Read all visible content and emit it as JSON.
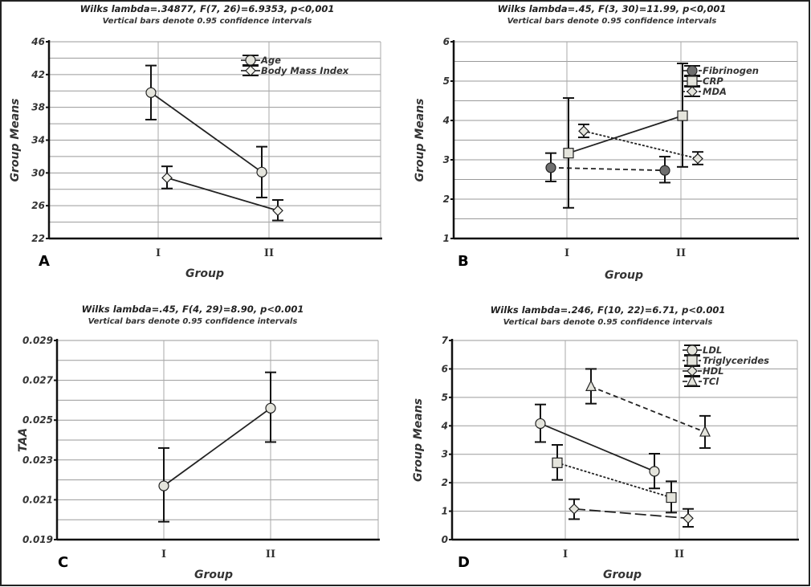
{
  "chart_data": [
    {
      "panel": "A",
      "type": "line",
      "title": "Wilks lambda=.34877, F(7, 26)=6.9353, p<0,001",
      "subtitle": "Vertical bars denote 0.95 confidence intervals",
      "xlabel": "Group",
      "ylabel": "Group Means",
      "categories": [
        "I",
        "II"
      ],
      "ylim": [
        22,
        46
      ],
      "yticks": [
        "22",
        "26",
        "30",
        "34",
        "38",
        "42",
        "46"
      ],
      "ytick_step": 4,
      "grid_step": 2,
      "grid": true,
      "legend": "top-right",
      "series": [
        {
          "name": "Age",
          "marker": "circle",
          "line": "solid",
          "fill": "#e4e4dc",
          "values": [
            39.8,
            30.1
          ],
          "ci_low": [
            36.5,
            27.0
          ],
          "ci_high": [
            43.1,
            33.2
          ]
        },
        {
          "name": "Body Mass Index",
          "marker": "diamond",
          "line": "solid",
          "fill": "#f2f2ec",
          "values": [
            29.4,
            25.4
          ],
          "ci_low": [
            28.1,
            24.2
          ],
          "ci_high": [
            30.8,
            26.7
          ]
        }
      ]
    },
    {
      "panel": "B",
      "type": "line",
      "title": "Wilks lambda=.45, F(3, 30)=11.99, p<0,001",
      "subtitle": "Vertical bars denote 0.95 confidence intervals",
      "xlabel": "Group",
      "ylabel": "Group Means",
      "categories": [
        "I",
        "II"
      ],
      "ylim": [
        1,
        6
      ],
      "yticks": [
        "1",
        "2",
        "3",
        "4",
        "5",
        "6"
      ],
      "ytick_step": 1,
      "grid_step": 0.5,
      "grid": true,
      "legend": "top-right",
      "series": [
        {
          "name": "Fibrinogen",
          "marker": "circle",
          "line": "dashed",
          "fill": "#6e6e6e",
          "values": [
            2.8,
            2.73
          ],
          "ci_low": [
            2.45,
            2.42
          ],
          "ci_high": [
            3.17,
            3.08
          ]
        },
        {
          "name": "CRP",
          "marker": "square",
          "line": "solid",
          "fill": "#e4e4dc",
          "values": [
            3.17,
            4.12
          ],
          "ci_low": [
            1.78,
            2.82
          ],
          "ci_high": [
            4.57,
            5.45
          ]
        },
        {
          "name": "MDA",
          "marker": "diamond",
          "line": "dotted",
          "fill": "#e4e4dc",
          "values": [
            3.73,
            3.03
          ],
          "ci_low": [
            3.57,
            2.88
          ],
          "ci_high": [
            3.9,
            3.2
          ]
        }
      ]
    },
    {
      "panel": "C",
      "type": "line",
      "title": "Wilks lambda=.45, F(4, 29)=8.90, p<0.001",
      "subtitle": "Vertical bars denote 0.95 confidence intervals",
      "xlabel": "Group",
      "ylabel": "TAA",
      "categories": [
        "I",
        "II"
      ],
      "ylim": [
        0.019,
        0.029
      ],
      "yticks": [
        "0.019",
        "0.021",
        "0.023",
        "0.025",
        "0.027",
        "0.029"
      ],
      "ytick_step": 0.002,
      "grid_step": 0.001,
      "grid": true,
      "legend": "none",
      "series": [
        {
          "marker": "circle",
          "line": "solid",
          "fill": "#e4e4dc",
          "values": [
            0.0217,
            0.0256
          ],
          "ci_low": [
            0.0199,
            0.0239
          ],
          "ci_high": [
            0.0236,
            0.0274
          ]
        }
      ]
    },
    {
      "panel": "D",
      "type": "line",
      "title": "Wilks lambda=.246, F(10, 22)=6.71, p<0.001",
      "subtitle": "Vertical bars denote 0.95 confidence intervals",
      "xlabel": "Group",
      "ylabel": "Group Means",
      "categories": [
        "I",
        "II"
      ],
      "ylim": [
        0,
        7
      ],
      "yticks": [
        "0",
        "1",
        "2",
        "3",
        "4",
        "5",
        "6",
        "7"
      ],
      "ytick_step": 1,
      "grid_step": 1,
      "grid": true,
      "legend": "top-right",
      "series": [
        {
          "name": "LDL",
          "marker": "circle",
          "line": "solid",
          "fill": "#e4e4dc",
          "values": [
            4.08,
            2.4
          ],
          "ci_low": [
            3.43,
            1.8
          ],
          "ci_high": [
            4.75,
            3.02
          ]
        },
        {
          "name": "Triglycerides",
          "marker": "square",
          "line": "dotted",
          "fill": "#e4e4dc",
          "values": [
            2.7,
            1.48
          ],
          "ci_low": [
            2.1,
            0.95
          ],
          "ci_high": [
            3.33,
            2.05
          ]
        },
        {
          "name": "HDL",
          "marker": "diamond",
          "line": "longdash",
          "fill": "#e4e4dc",
          "values": [
            1.08,
            0.75
          ],
          "ci_low": [
            0.72,
            0.45
          ],
          "ci_high": [
            1.42,
            1.08
          ]
        },
        {
          "name": "TCl",
          "marker": "triangle",
          "line": "dashed",
          "fill": "#e4e4dc",
          "values": [
            5.38,
            3.78
          ],
          "ci_low": [
            4.78,
            3.22
          ],
          "ci_high": [
            6.0,
            4.35
          ]
        }
      ]
    }
  ]
}
